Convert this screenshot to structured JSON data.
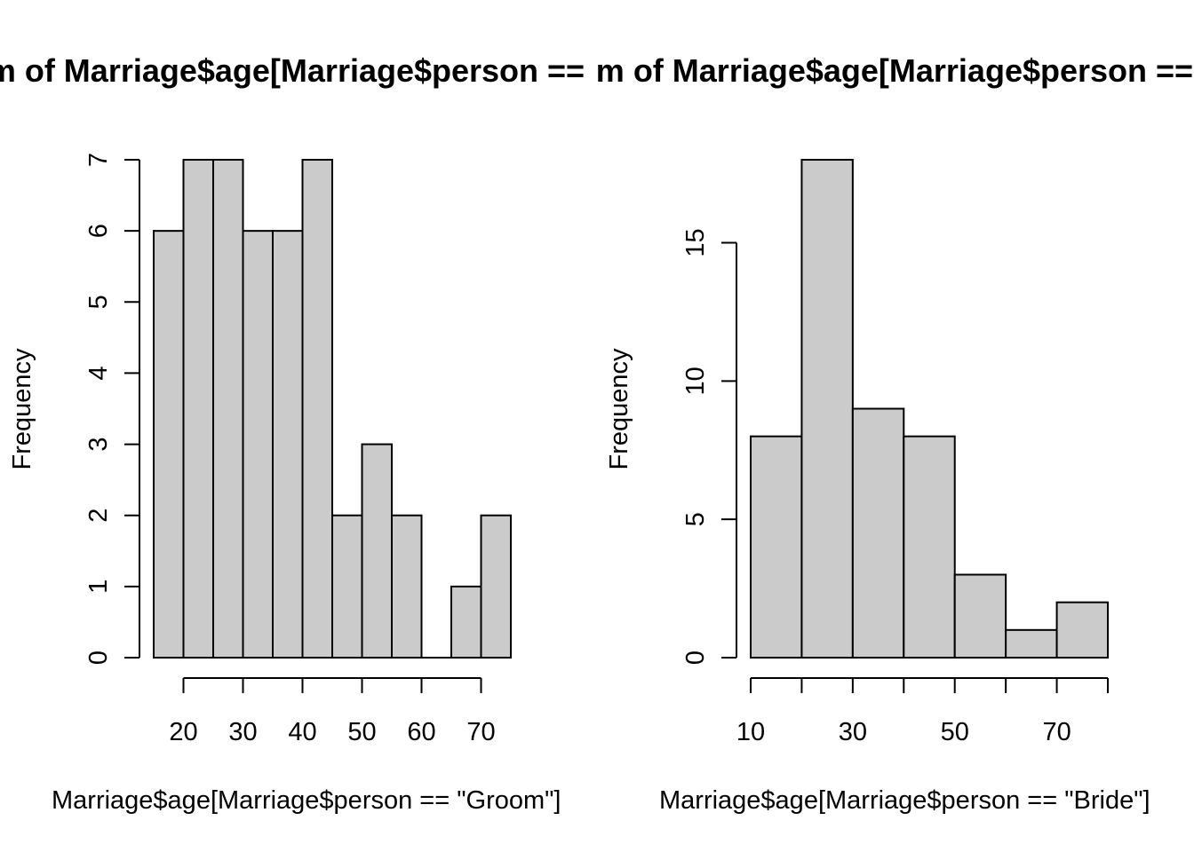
{
  "chart_data": [
    {
      "type": "bar",
      "title": "Histogram of Marriage$age[Marriage$person == \"Groom\"]",
      "xlabel": "Marriage$age[Marriage$person == \"Groom\"]",
      "ylabel": "Frequency",
      "bin_edges": [
        15,
        20,
        25,
        30,
        35,
        40,
        45,
        50,
        55,
        60,
        65,
        70,
        75
      ],
      "values": [
        6,
        7,
        7,
        6,
        6,
        7,
        2,
        3,
        2,
        0,
        1,
        2
      ],
      "xlim": [
        15,
        75
      ],
      "ylim": [
        0,
        7
      ],
      "x_ticks": [
        20,
        30,
        40,
        50,
        60,
        70
      ],
      "y_ticks": [
        0,
        1,
        2,
        3,
        4,
        5,
        6,
        7
      ],
      "bar_color": "#cbcbcb",
      "grid": false
    },
    {
      "type": "bar",
      "title": "Histogram of Marriage$age[Marriage$person == \"Bride\"]",
      "xlabel": "Marriage$age[Marriage$person == \"Bride\"]",
      "ylabel": "Frequency",
      "bin_edges": [
        10,
        20,
        30,
        40,
        50,
        60,
        70,
        80
      ],
      "values": [
        8,
        18,
        9,
        8,
        3,
        1,
        2
      ],
      "xlim": [
        10,
        80
      ],
      "ylim": [
        0,
        18
      ],
      "x_ticks": [
        10,
        20,
        30,
        40,
        50,
        60,
        70,
        80
      ],
      "x_tick_labels": [
        "10",
        "",
        "30",
        "",
        "50",
        "",
        "70",
        ""
      ],
      "y_ticks": [
        0,
        5,
        10,
        15
      ],
      "bar_color": "#cbcbcb",
      "grid": false
    }
  ]
}
